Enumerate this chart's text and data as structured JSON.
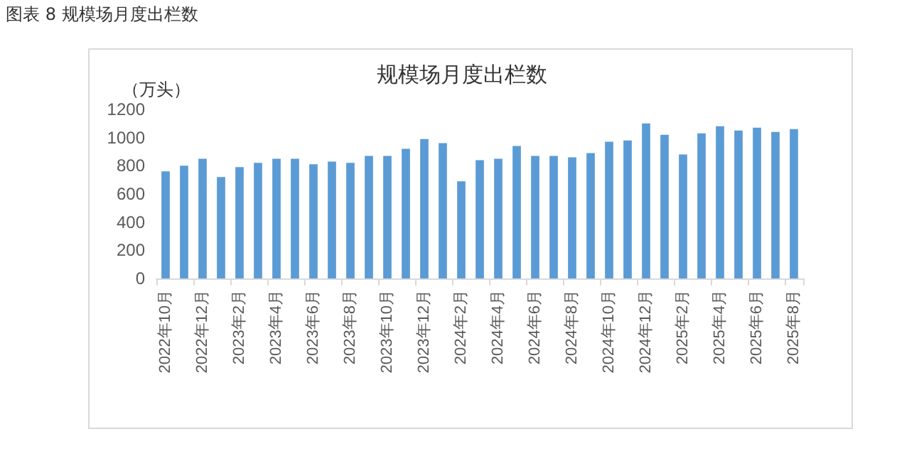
{
  "chart_data": {
    "type": "bar",
    "title": "规模场月度出栏数",
    "ylabel": "（万头）",
    "annotations": [
      "图表 8  规模场月度出栏数"
    ],
    "categories": [
      "2022年10月",
      null,
      "2022年12月",
      null,
      "2023年2月",
      null,
      "2023年4月",
      null,
      "2023年6月",
      null,
      "2023年8月",
      null,
      "2023年10月",
      null,
      "2023年12月",
      null,
      "2024年2月",
      null,
      "2024年4月",
      null,
      "2024年6月",
      null,
      "2024年8月",
      null,
      "2024年10月",
      null,
      "2024年12月",
      null,
      "2025年2月",
      null,
      "2025年4月",
      null,
      "2025年6月",
      null,
      "2025年8月"
    ],
    "values": [
      760,
      800,
      850,
      720,
      790,
      820,
      850,
      850,
      810,
      830,
      820,
      870,
      870,
      920,
      990,
      960,
      690,
      840,
      850,
      940,
      870,
      870,
      860,
      890,
      970,
      980,
      1100,
      1020,
      880,
      1030,
      1080,
      1050,
      1070,
      1040,
      1060
    ],
    "color": "#5b9bd5",
    "ylim": [
      0,
      1200
    ],
    "yticks": [
      0,
      200,
      400,
      600,
      800,
      1000,
      1200
    ],
    "grid": false
  }
}
